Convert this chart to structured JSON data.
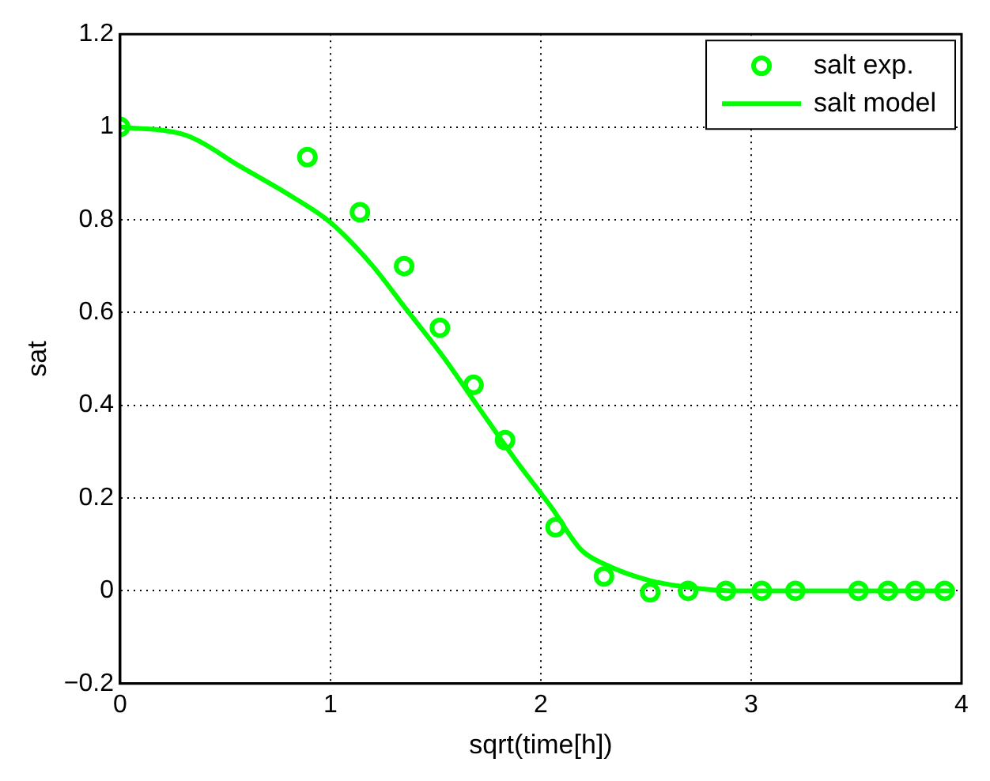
{
  "chart_data": {
    "type": "scatter",
    "xlabel": "sqrt(time[h])",
    "ylabel": "sat",
    "xlim": [
      0,
      4
    ],
    "xticks": [
      0,
      1,
      2,
      3,
      4
    ],
    "ylim": [
      -0.2,
      1.2
    ],
    "yticks": [
      {
        "value": -0.2,
        "label": "−0.2"
      },
      0,
      0.2,
      0.4,
      0.6,
      0.8,
      1,
      1.2
    ],
    "grid": true,
    "legend": "top right",
    "series": [
      {
        "name": "salt exp.",
        "marker": "circle",
        "color": "#00ff00",
        "x": [
          0,
          0.89,
          1.14,
          1.35,
          1.52,
          1.68,
          1.83,
          2.07,
          2.3,
          2.52,
          2.7,
          2.88,
          3.05,
          3.21,
          3.51,
          3.65,
          3.78,
          3.92
        ],
        "values": [
          1,
          0.935,
          0.816,
          0.7,
          0.567,
          0.444,
          0.325,
          0.137,
          0.031,
          -0.003,
          0,
          0,
          0,
          0,
          0,
          0,
          0,
          0
        ]
      },
      {
        "name": "salt model",
        "type": "line",
        "marker": "none",
        "line_style": "solid",
        "color": "#00ff00",
        "x": [
          0,
          0.32,
          0.57,
          0.82,
          1.0,
          1.19,
          1.36,
          1.53,
          1.7,
          1.88,
          2.05,
          2.19,
          2.31,
          2.51,
          2.71,
          2.9,
          3.95
        ],
        "values": [
          1,
          0.981,
          0.915,
          0.849,
          0.794,
          0.706,
          0.607,
          0.508,
          0.398,
          0.282,
          0.18,
          0.089,
          0.056,
          0.023,
          0.007,
          0,
          0
        ]
      }
    ]
  }
}
